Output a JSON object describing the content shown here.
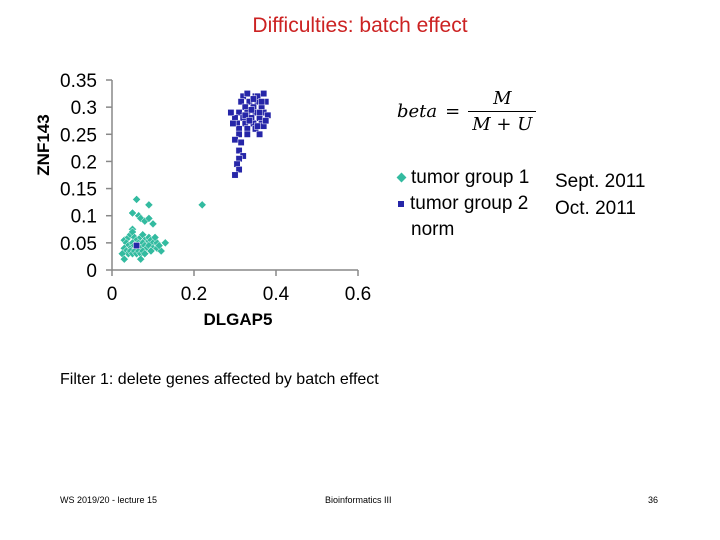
{
  "title": "Difficulties: batch effect",
  "formula": {
    "lhs": "beta",
    "eq": "=",
    "numerator": "M",
    "denominator": "M + U"
  },
  "legend": [
    {
      "label": "tumor group 1",
      "marker": "diamond",
      "color": "#33bba0"
    },
    {
      "label": "tumor group 2",
      "marker": "square",
      "color": "#2626a8"
    },
    {
      "label": "norm",
      "marker": "none",
      "color": ""
    }
  ],
  "dates": [
    "Sept. 2011",
    "Oct. 2011"
  ],
  "filter_text": "Filter 1: delete genes affected by batch effect",
  "footer": {
    "left": "WS 2019/20 - lecture 15",
    "center": "Bioinformatics III",
    "right": "36"
  },
  "chart_data": {
    "type": "scatter",
    "title": "Difficulties: batch effect",
    "xlabel": "DLGAP5",
    "ylabel": "ZNF143",
    "xlim": [
      0,
      0.6
    ],
    "ylim": [
      0,
      0.35
    ],
    "x_ticks": [
      0,
      0.2,
      0.4,
      0.6
    ],
    "y_ticks": [
      0,
      0.05,
      0.1,
      0.15,
      0.2,
      0.25,
      0.3,
      0.35
    ],
    "x_tick_labels": [
      "0",
      "0.2",
      "0.4",
      "0.6"
    ],
    "y_tick_labels": [
      "0",
      "0.05",
      "0.1",
      "0.15",
      "0.2",
      "0.25",
      "0.3",
      "0.35"
    ],
    "series": [
      {
        "name": "tumor group 1",
        "marker": "diamond",
        "color": "#33bba0",
        "points": [
          [
            0.06,
            0.13
          ],
          [
            0.09,
            0.12
          ],
          [
            0.05,
            0.105
          ],
          [
            0.065,
            0.1
          ],
          [
            0.07,
            0.095
          ],
          [
            0.08,
            0.09
          ],
          [
            0.09,
            0.095
          ],
          [
            0.1,
            0.085
          ],
          [
            0.05,
            0.075
          ],
          [
            0.03,
            0.055
          ],
          [
            0.04,
            0.06
          ],
          [
            0.045,
            0.065
          ],
          [
            0.05,
            0.07
          ],
          [
            0.055,
            0.06
          ],
          [
            0.06,
            0.055
          ],
          [
            0.065,
            0.05
          ],
          [
            0.07,
            0.06
          ],
          [
            0.075,
            0.065
          ],
          [
            0.08,
            0.055
          ],
          [
            0.085,
            0.05
          ],
          [
            0.09,
            0.06
          ],
          [
            0.095,
            0.055
          ],
          [
            0.1,
            0.05
          ],
          [
            0.035,
            0.05
          ],
          [
            0.04,
            0.045
          ],
          [
            0.045,
            0.04
          ],
          [
            0.05,
            0.05
          ],
          [
            0.055,
            0.045
          ],
          [
            0.06,
            0.04
          ],
          [
            0.065,
            0.045
          ],
          [
            0.07,
            0.04
          ],
          [
            0.075,
            0.05
          ],
          [
            0.08,
            0.045
          ],
          [
            0.085,
            0.04
          ],
          [
            0.09,
            0.045
          ],
          [
            0.03,
            0.04
          ],
          [
            0.035,
            0.035
          ],
          [
            0.04,
            0.03
          ],
          [
            0.045,
            0.035
          ],
          [
            0.05,
            0.03
          ],
          [
            0.055,
            0.035
          ],
          [
            0.06,
            0.03
          ],
          [
            0.065,
            0.035
          ],
          [
            0.07,
            0.03
          ],
          [
            0.075,
            0.035
          ],
          [
            0.08,
            0.03
          ],
          [
            0.1,
            0.04
          ],
          [
            0.11,
            0.05
          ],
          [
            0.13,
            0.05
          ],
          [
            0.11,
            0.04
          ],
          [
            0.025,
            0.03
          ],
          [
            0.03,
            0.02
          ],
          [
            0.07,
            0.02
          ],
          [
            0.105,
            0.06
          ],
          [
            0.095,
            0.035
          ],
          [
            0.12,
            0.035
          ],
          [
            0.115,
            0.045
          ],
          [
            0.22,
            0.12
          ]
        ]
      },
      {
        "name": "tumor group 2",
        "marker": "square",
        "color": "#2626a8",
        "points": [
          [
            0.32,
            0.32
          ],
          [
            0.33,
            0.325
          ],
          [
            0.35,
            0.32
          ],
          [
            0.37,
            0.325
          ],
          [
            0.315,
            0.31
          ],
          [
            0.335,
            0.31
          ],
          [
            0.355,
            0.31
          ],
          [
            0.375,
            0.31
          ],
          [
            0.325,
            0.3
          ],
          [
            0.345,
            0.3
          ],
          [
            0.365,
            0.3
          ],
          [
            0.31,
            0.29
          ],
          [
            0.33,
            0.29
          ],
          [
            0.35,
            0.29
          ],
          [
            0.37,
            0.29
          ],
          [
            0.38,
            0.285
          ],
          [
            0.3,
            0.28
          ],
          [
            0.32,
            0.28
          ],
          [
            0.34,
            0.28
          ],
          [
            0.36,
            0.28
          ],
          [
            0.305,
            0.27
          ],
          [
            0.325,
            0.27
          ],
          [
            0.345,
            0.27
          ],
          [
            0.365,
            0.27
          ],
          [
            0.31,
            0.26
          ],
          [
            0.33,
            0.26
          ],
          [
            0.35,
            0.26
          ],
          [
            0.37,
            0.265
          ],
          [
            0.31,
            0.25
          ],
          [
            0.33,
            0.25
          ],
          [
            0.36,
            0.25
          ],
          [
            0.3,
            0.24
          ],
          [
            0.315,
            0.235
          ],
          [
            0.31,
            0.22
          ],
          [
            0.32,
            0.21
          ],
          [
            0.31,
            0.205
          ],
          [
            0.305,
            0.195
          ],
          [
            0.31,
            0.185
          ],
          [
            0.3,
            0.175
          ],
          [
            0.29,
            0.29
          ],
          [
            0.295,
            0.27
          ],
          [
            0.355,
            0.32
          ],
          [
            0.345,
            0.315
          ],
          [
            0.36,
            0.29
          ],
          [
            0.365,
            0.31
          ],
          [
            0.34,
            0.295
          ],
          [
            0.325,
            0.285
          ],
          [
            0.335,
            0.275
          ],
          [
            0.355,
            0.265
          ],
          [
            0.375,
            0.275
          ],
          [
            0.06,
            0.045
          ]
        ]
      }
    ]
  }
}
